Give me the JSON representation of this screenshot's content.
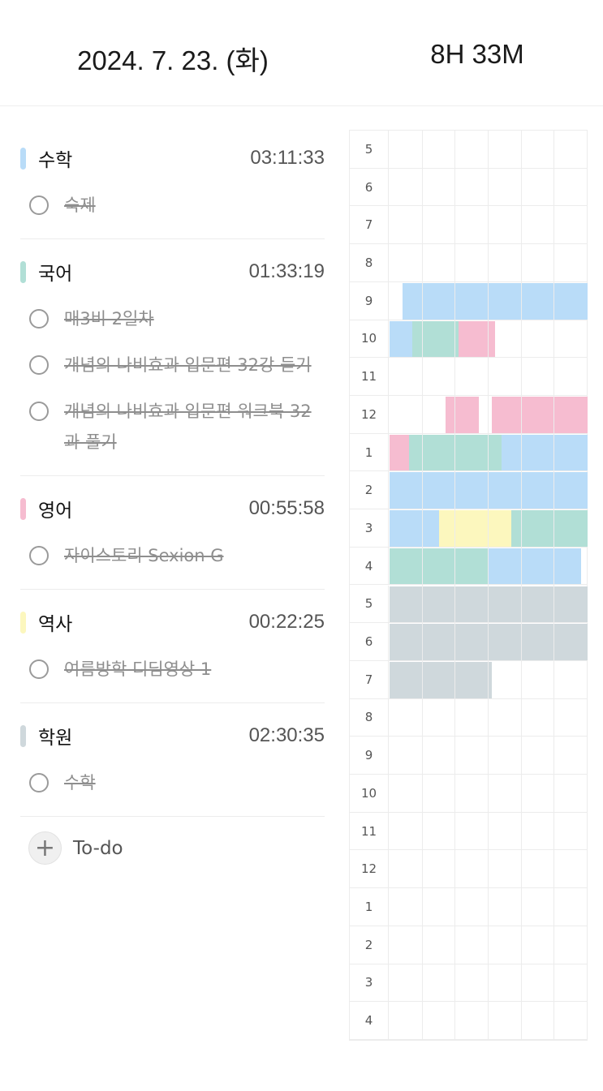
{
  "header": {
    "date": "2024. 7. 23. (화)",
    "total": "8H 33M"
  },
  "subjects": [
    {
      "name": "수학",
      "time": "03:11:33",
      "color": "#b9dcf8",
      "todos": [
        "숙제"
      ]
    },
    {
      "name": "국어",
      "time": "01:33:19",
      "color": "#b1dfd6",
      "todos": [
        "매3비 2일차",
        "개념의 나비효과 입문편 32강 듣기",
        "개념의 나비효과 입문편 워크북 32과 풀기"
      ]
    },
    {
      "name": "영어",
      "time": "00:55:58",
      "color": "#f6bcd0",
      "todos": [
        "자이스토리 Sexion G"
      ]
    },
    {
      "name": "역사",
      "time": "00:22:25",
      "color": "#fcf7be",
      "todos": [
        "여름방학 디딤영상 1"
      ]
    },
    {
      "name": "학원",
      "time": "02:30:35",
      "color": "#cfd8dc",
      "todos": [
        "수학"
      ]
    }
  ],
  "add_todo": {
    "icon": "plus-icon",
    "label": "To-do"
  },
  "timetable": {
    "hours": [
      "5",
      "6",
      "7",
      "8",
      "9",
      "10",
      "11",
      "12",
      "1",
      "2",
      "3",
      "4",
      "5",
      "6",
      "7",
      "8",
      "9",
      "10",
      "11",
      "12",
      "1",
      "2",
      "3",
      "4"
    ],
    "blocks": [
      {
        "subject": 0,
        "start": "09:04",
        "end": "10:00"
      },
      {
        "subject": 0,
        "start": "10:00",
        "end": "10:07"
      },
      {
        "subject": 1,
        "start": "10:07",
        "end": "10:21"
      },
      {
        "subject": 2,
        "start": "10:21",
        "end": "10:32"
      },
      {
        "subject": 2,
        "start": "12:17",
        "end": "12:27"
      },
      {
        "subject": 2,
        "start": "12:31",
        "end": "13:00"
      },
      {
        "subject": 2,
        "start": "13:00",
        "end": "13:06"
      },
      {
        "subject": 1,
        "start": "13:06",
        "end": "13:34"
      },
      {
        "subject": 0,
        "start": "13:34",
        "end": "15:15"
      },
      {
        "subject": 3,
        "start": "15:15",
        "end": "15:37"
      },
      {
        "subject": 1,
        "start": "15:37",
        "end": "16:30"
      },
      {
        "subject": 0,
        "start": "16:30",
        "end": "16:58"
      },
      {
        "subject": 4,
        "start": "17:00",
        "end": "19:31"
      }
    ]
  }
}
